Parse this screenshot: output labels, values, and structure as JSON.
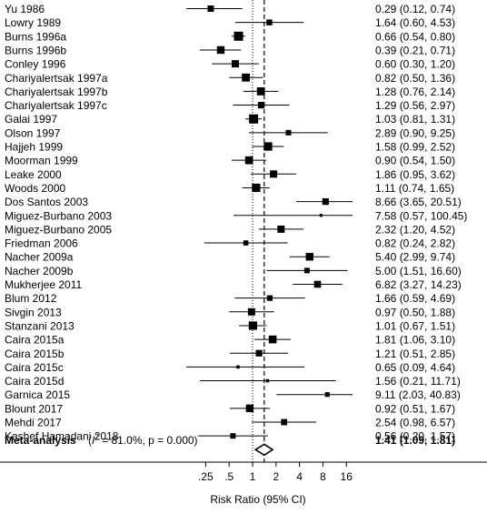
{
  "chart_data": {
    "type": "forest",
    "xlabel": "Risk Ratio (95% CI)",
    "x_scale": "log",
    "xlim": [
      0.09,
      25
    ],
    "ticks": [
      {
        "value": 0.25,
        "label": ".25"
      },
      {
        "value": 0.5,
        "label": ".5"
      },
      {
        "value": 1,
        "label": "1"
      },
      {
        "value": 2,
        "label": "2"
      },
      {
        "value": 4,
        "label": "4"
      },
      {
        "value": 8,
        "label": "8"
      },
      {
        "value": 16,
        "label": "16"
      }
    ],
    "reference_line": 1,
    "studies": [
      {
        "label": "Yu 1986",
        "rr": 0.29,
        "lo": 0.12,
        "hi": 0.74,
        "text": "0.29 (0.12, 0.74)",
        "weight": 3.5
      },
      {
        "label": "Lowry 1989",
        "rr": 1.64,
        "lo": 0.6,
        "hi": 4.53,
        "text": "1.64 (0.60, 4.53)",
        "weight": 3.2
      },
      {
        "label": "Burns 1996a",
        "rr": 0.66,
        "lo": 0.54,
        "hi": 0.8,
        "text": "0.66 (0.54, 0.80)",
        "weight": 5.0
      },
      {
        "label": "Burns 1996b",
        "rr": 0.39,
        "lo": 0.21,
        "hi": 0.71,
        "text": "0.39 (0.21, 0.71)",
        "weight": 4.2
      },
      {
        "label": "Conley 1996",
        "rr": 0.6,
        "lo": 0.3,
        "hi": 1.2,
        "text": "0.60 (0.30, 1.20)",
        "weight": 4.0
      },
      {
        "label": "Chariyalertsak 1997a",
        "rr": 0.82,
        "lo": 0.5,
        "hi": 1.36,
        "text": "0.82 (0.50, 1.36)",
        "weight": 4.4
      },
      {
        "label": "Chariyalertsak 1997b",
        "rr": 1.28,
        "lo": 0.76,
        "hi": 2.14,
        "text": "1.28 (0.76, 2.14)",
        "weight": 4.4
      },
      {
        "label": "Chariyalertsak 1997c",
        "rr": 1.29,
        "lo": 0.56,
        "hi": 2.97,
        "text": "1.29 (0.56, 2.97)",
        "weight": 3.6
      },
      {
        "label": "Galai 1997",
        "rr": 1.03,
        "lo": 0.81,
        "hi": 1.31,
        "text": "1.03 (0.81, 1.31)",
        "weight": 5.0
      },
      {
        "label": "Olson 1997",
        "rr": 2.89,
        "lo": 0.9,
        "hi": 9.25,
        "text": "2.89 (0.90, 9.25)",
        "weight": 3.0
      },
      {
        "label": "Hajjeh 1999",
        "rr": 1.58,
        "lo": 0.99,
        "hi": 2.52,
        "text": "1.58 (0.99, 2.52)",
        "weight": 4.6
      },
      {
        "label": "Moorman 1999",
        "rr": 0.9,
        "lo": 0.54,
        "hi": 1.5,
        "text": "0.90 (0.54, 1.50)",
        "weight": 4.3
      },
      {
        "label": "Leake 2000",
        "rr": 1.86,
        "lo": 0.95,
        "hi": 3.62,
        "text": "1.86 (0.95, 3.62)",
        "weight": 4.0
      },
      {
        "label": "Woods 2000",
        "rr": 1.11,
        "lo": 0.74,
        "hi": 1.65,
        "text": "1.11 (0.74, 1.65)",
        "weight": 4.6
      },
      {
        "label": "Dos Santos 2003",
        "rr": 8.66,
        "lo": 3.65,
        "hi": 20.51,
        "text": "8.66 (3.65, 20.51)",
        "weight": 3.6
      },
      {
        "label": "Miguez-Burbano 2003",
        "rr": 7.58,
        "lo": 0.57,
        "hi": 100.45,
        "text": "7.58 (0.57, 100.45)",
        "weight": 1.6
      },
      {
        "label": "Miguez-Burbano 2005",
        "rr": 2.32,
        "lo": 1.2,
        "hi": 4.52,
        "text": "2.32 (1.20, 4.52)",
        "weight": 4.0
      },
      {
        "label": "Friedman 2006",
        "rr": 0.82,
        "lo": 0.24,
        "hi": 2.82,
        "text": "0.82 (0.24, 2.82)",
        "weight": 2.8
      },
      {
        "label": "Nacher 2009a",
        "rr": 5.4,
        "lo": 2.99,
        "hi": 9.74,
        "text": "5.40 (2.99, 9.74)",
        "weight": 4.2
      },
      {
        "label": "Nacher 2009b",
        "rr": 5.0,
        "lo": 1.51,
        "hi": 16.6,
        "text": "5.00 (1.51, 16.60)",
        "weight": 3.0
      },
      {
        "label": "Mukherjee 2011",
        "rr": 6.82,
        "lo": 3.27,
        "hi": 14.23,
        "text": "6.82 (3.27, 14.23)",
        "weight": 3.8
      },
      {
        "label": "Blum 2012",
        "rr": 1.66,
        "lo": 0.59,
        "hi": 4.69,
        "text": "1.66 (0.59, 4.69)",
        "weight": 3.1
      },
      {
        "label": "Sivgin 2013",
        "rr": 0.97,
        "lo": 0.5,
        "hi": 1.88,
        "text": "0.97 (0.50, 1.88)",
        "weight": 4.0
      },
      {
        "label": "Stanzani 2013",
        "rr": 1.01,
        "lo": 0.67,
        "hi": 1.51,
        "text": "1.01 (0.67, 1.51)",
        "weight": 4.6
      },
      {
        "label": "Caira 2015a",
        "rr": 1.81,
        "lo": 1.06,
        "hi": 3.1,
        "text": "1.81 (1.06, 3.10)",
        "weight": 4.3
      },
      {
        "label": "Caira 2015b",
        "rr": 1.21,
        "lo": 0.51,
        "hi": 2.85,
        "text": "1.21 (0.51, 2.85)",
        "weight": 3.6
      },
      {
        "label": "Caira 2015c",
        "rr": 0.65,
        "lo": 0.09,
        "hi": 4.64,
        "text": "0.65 (0.09, 4.64)",
        "weight": 1.8
      },
      {
        "label": "Caira 2015d",
        "rr": 1.56,
        "lo": 0.21,
        "hi": 11.71,
        "text": "1.56 (0.21, 11.71)",
        "weight": 1.8
      },
      {
        "label": "Garnica 2015",
        "rr": 9.11,
        "lo": 2.03,
        "hi": 40.83,
        "text": "9.11 (2.03, 40.83)",
        "weight": 2.6
      },
      {
        "label": "Blount 2017",
        "rr": 0.92,
        "lo": 0.51,
        "hi": 1.67,
        "text": "0.92 (0.51, 1.67)",
        "weight": 4.2
      },
      {
        "label": "Mehdi 2017",
        "rr": 2.54,
        "lo": 0.98,
        "hi": 6.57,
        "text": "2.54 (0.98, 6.57)",
        "weight": 3.4
      },
      {
        "label": "Kashef Hamadani 2018",
        "rr": 0.56,
        "lo": 0.2,
        "hi": 1.57,
        "text": "0.56 (0.20, 1.57)",
        "weight": 3.0
      }
    ],
    "overall": {
      "label": "Meta-analysis",
      "heterogeneity": "(I² = 81.0%, p = 0.000)",
      "rr": 1.41,
      "lo": 1.09,
      "hi": 1.81,
      "text": "1.41 (1.09, 1.81)"
    }
  }
}
